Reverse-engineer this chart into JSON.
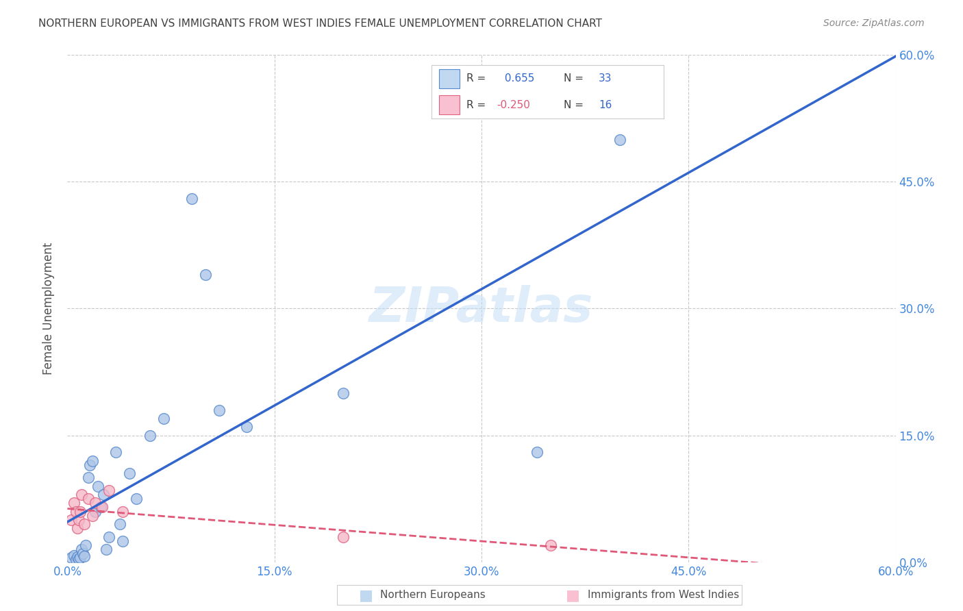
{
  "title": "NORTHERN EUROPEAN VS IMMIGRANTS FROM WEST INDIES FEMALE UNEMPLOYMENT CORRELATION CHART",
  "source": "Source: ZipAtlas.com",
  "xlabel_ticks": [
    "0.0%",
    "15.0%",
    "30.0%",
    "45.0%",
    "60.0%"
  ],
  "xlabel_vals": [
    0.0,
    0.15,
    0.3,
    0.45,
    0.6
  ],
  "ylabel": "Female Unemployment",
  "ylabel_ticks": [
    "0.0%",
    "15.0%",
    "30.0%",
    "45.0%",
    "60.0%"
  ],
  "ylabel_vals": [
    0.0,
    0.15,
    0.3,
    0.45,
    0.6
  ],
  "xlim": [
    0.0,
    0.6
  ],
  "ylim": [
    0.0,
    0.6
  ],
  "watermark": "ZIPatlas",
  "blue_R": 0.655,
  "blue_N": 33,
  "pink_R": -0.25,
  "pink_N": 16,
  "blue_scatter_x": [
    0.003,
    0.005,
    0.006,
    0.007,
    0.008,
    0.009,
    0.01,
    0.011,
    0.012,
    0.013,
    0.015,
    0.016,
    0.018,
    0.02,
    0.022,
    0.024,
    0.026,
    0.028,
    0.03,
    0.035,
    0.038,
    0.04,
    0.045,
    0.05,
    0.06,
    0.07,
    0.09,
    0.1,
    0.11,
    0.13,
    0.2,
    0.34,
    0.4
  ],
  "blue_scatter_y": [
    0.005,
    0.008,
    0.003,
    0.006,
    0.004,
    0.005,
    0.015,
    0.01,
    0.007,
    0.02,
    0.1,
    0.115,
    0.12,
    0.06,
    0.09,
    0.065,
    0.08,
    0.015,
    0.03,
    0.13,
    0.045,
    0.025,
    0.105,
    0.075,
    0.15,
    0.17,
    0.43,
    0.34,
    0.18,
    0.16,
    0.2,
    0.13,
    0.5
  ],
  "pink_scatter_x": [
    0.003,
    0.005,
    0.006,
    0.007,
    0.008,
    0.009,
    0.01,
    0.012,
    0.015,
    0.018,
    0.02,
    0.025,
    0.03,
    0.04,
    0.2,
    0.35
  ],
  "pink_scatter_y": [
    0.05,
    0.07,
    0.06,
    0.04,
    0.05,
    0.06,
    0.08,
    0.045,
    0.075,
    0.055,
    0.07,
    0.065,
    0.085,
    0.06,
    0.03,
    0.02
  ],
  "blue_color": "#aec6e8",
  "pink_color": "#f4b8c8",
  "blue_edge_color": "#5588cc",
  "pink_edge_color": "#e06080",
  "blue_line_color": "#3366cc",
  "pink_line_color": "#e05878",
  "bg_color": "#ffffff",
  "grid_color": "#c8c8c8",
  "title_color": "#404040",
  "source_color": "#888888",
  "axis_tick_color": "#4488dd",
  "ylabel_color": "#505050",
  "legend_blue_fill": "#c0d8f0",
  "legend_pink_fill": "#f8c0d0"
}
